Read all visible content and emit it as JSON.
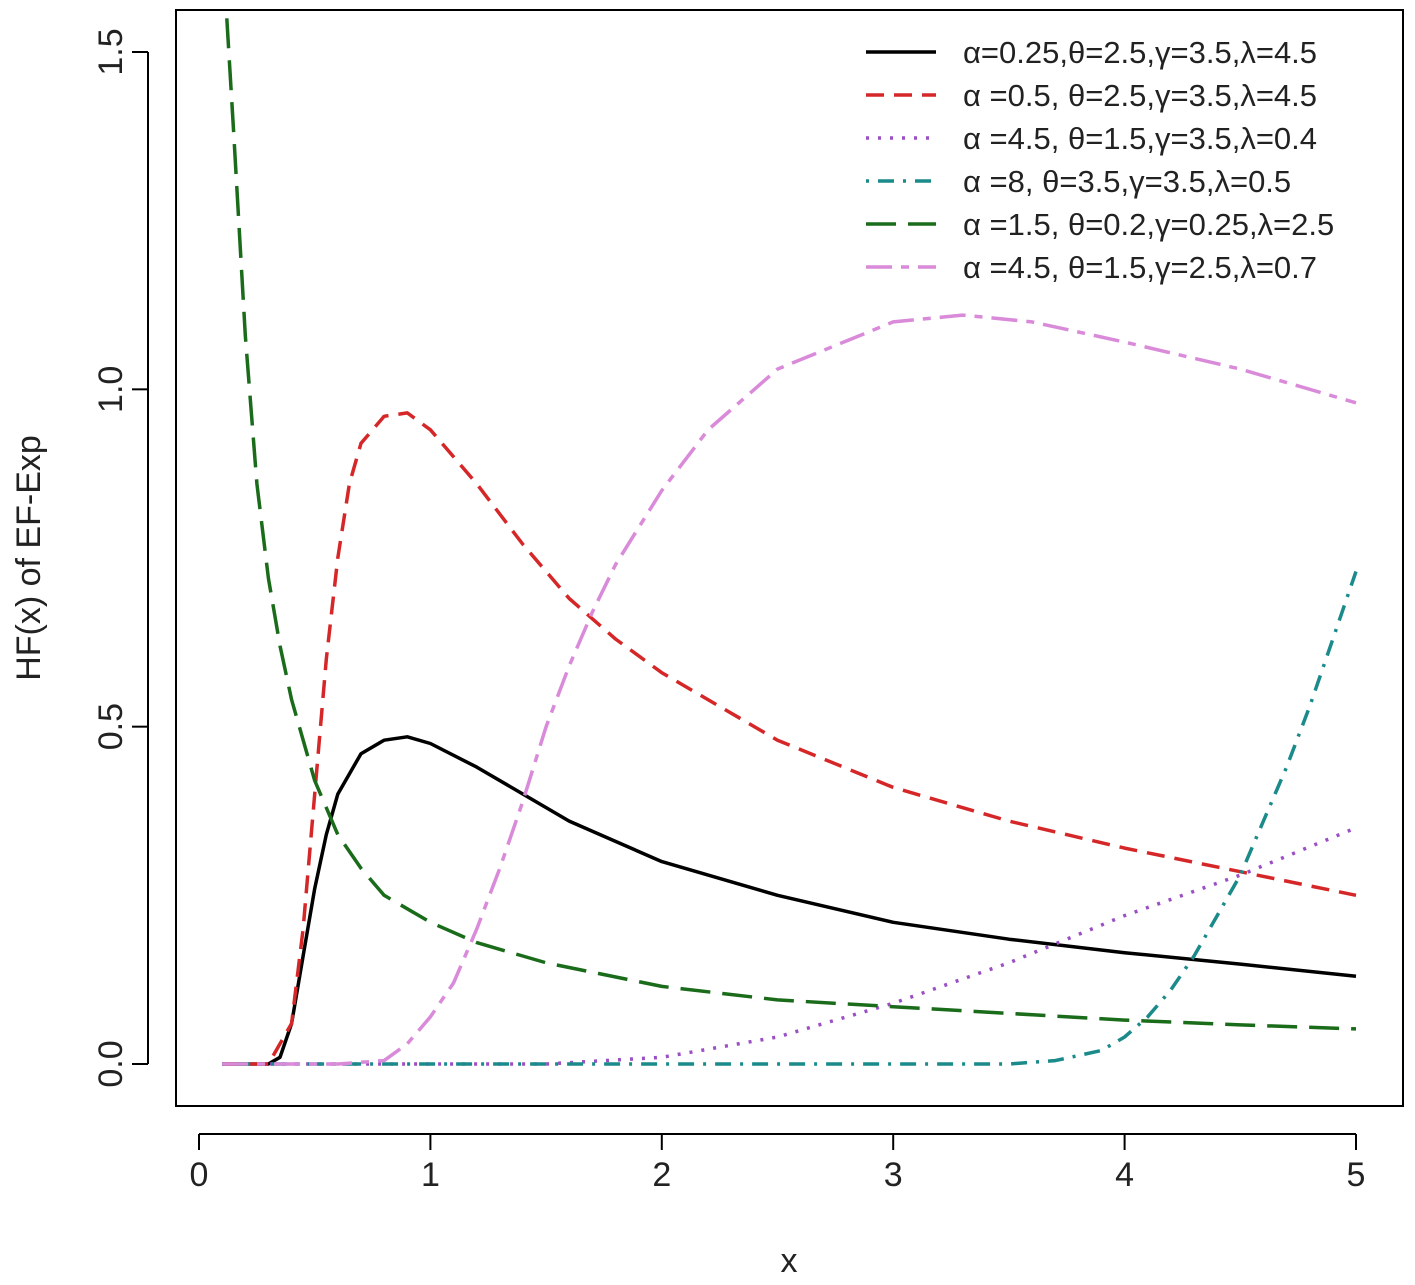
{
  "chart_data": {
    "type": "line",
    "title": "",
    "xlabel": "x",
    "ylabel": "HF(x) of EF-Exp",
    "xlim": [
      0,
      5
    ],
    "ylim": [
      0,
      1.5
    ],
    "x_ticks": [
      "0",
      "1",
      "2",
      "3",
      "4",
      "5"
    ],
    "y_ticks": [
      "0.0",
      "0.5",
      "1.0",
      "1.5"
    ],
    "grid": false,
    "legend_position": "top-right",
    "series": [
      {
        "name": "α=0.25,θ=2.5,γ=3.5,λ=4.5",
        "color": "#000000",
        "dash": "solid",
        "x": [
          0.1,
          0.2,
          0.3,
          0.35,
          0.4,
          0.45,
          0.5,
          0.55,
          0.6,
          0.7,
          0.8,
          0.9,
          1.0,
          1.2,
          1.4,
          1.6,
          1.8,
          2.0,
          2.5,
          3.0,
          3.5,
          4.0,
          4.5,
          5.0
        ],
        "y": [
          0,
          0,
          0,
          0.01,
          0.06,
          0.16,
          0.26,
          0.34,
          0.4,
          0.46,
          0.48,
          0.485,
          0.475,
          0.44,
          0.4,
          0.36,
          0.33,
          0.3,
          0.25,
          0.21,
          0.185,
          0.165,
          0.148,
          0.13
        ]
      },
      {
        "name": "α =0.5, θ=2.5,γ=3.5,λ=4.5",
        "color": "#d62728",
        "dash": "dashed",
        "x": [
          0.1,
          0.3,
          0.4,
          0.45,
          0.5,
          0.55,
          0.6,
          0.65,
          0.7,
          0.8,
          0.9,
          1.0,
          1.2,
          1.4,
          1.6,
          1.8,
          2.0,
          2.5,
          3.0,
          3.5,
          4.0,
          4.5,
          5.0
        ],
        "y": [
          0,
          0,
          0.06,
          0.2,
          0.4,
          0.6,
          0.75,
          0.86,
          0.92,
          0.96,
          0.965,
          0.94,
          0.86,
          0.77,
          0.69,
          0.63,
          0.58,
          0.48,
          0.41,
          0.36,
          0.32,
          0.285,
          0.25
        ]
      },
      {
        "name": "α =4.5, θ=1.5,γ=3.5,λ=0.4",
        "color": "#9b4fc4",
        "dash": "dotted",
        "x": [
          0.1,
          1.0,
          1.5,
          2.0,
          2.5,
          3.0,
          3.5,
          4.0,
          4.5,
          5.0
        ],
        "y": [
          0,
          0,
          0,
          0.01,
          0.04,
          0.09,
          0.15,
          0.22,
          0.28,
          0.35
        ]
      },
      {
        "name": "α =8, θ=3.5,γ=3.5,λ=0.5",
        "color": "#1a8a8a",
        "dash": "dashdot",
        "x": [
          0.1,
          1.0,
          2.0,
          3.0,
          3.5,
          3.7,
          3.9,
          4.0,
          4.1,
          4.2,
          4.3,
          4.4,
          4.5,
          4.6,
          4.7,
          4.8,
          4.9,
          5.0
        ],
        "y": [
          0,
          0,
          0,
          0,
          0,
          0.005,
          0.02,
          0.04,
          0.07,
          0.11,
          0.16,
          0.22,
          0.28,
          0.36,
          0.44,
          0.53,
          0.63,
          0.73
        ]
      },
      {
        "name": "α =1.5, θ=0.2,γ=0.25,λ=2.5",
        "color": "#1a6b1a",
        "dash": "longdash",
        "x": [
          0.12,
          0.15,
          0.2,
          0.25,
          0.3,
          0.35,
          0.4,
          0.5,
          0.6,
          0.7,
          0.8,
          1.0,
          1.2,
          1.5,
          2.0,
          2.5,
          3.0,
          3.5,
          4.0,
          4.5,
          5.0
        ],
        "y": [
          1.55,
          1.38,
          1.08,
          0.86,
          0.72,
          0.62,
          0.54,
          0.42,
          0.34,
          0.29,
          0.25,
          0.21,
          0.18,
          0.15,
          0.115,
          0.095,
          0.085,
          0.075,
          0.065,
          0.058,
          0.052
        ]
      },
      {
        "name": "α =4.5, θ=1.5,γ=2.5,λ=0.7",
        "color": "#d98ad9",
        "dash": "twodash",
        "x": [
          0.1,
          0.6,
          0.8,
          0.9,
          1.0,
          1.1,
          1.2,
          1.3,
          1.4,
          1.5,
          1.6,
          1.7,
          1.8,
          2.0,
          2.2,
          2.5,
          3.0,
          3.3,
          3.6,
          4.0,
          4.5,
          5.0
        ],
        "y": [
          0,
          0,
          0.005,
          0.03,
          0.07,
          0.12,
          0.2,
          0.29,
          0.39,
          0.5,
          0.59,
          0.67,
          0.74,
          0.85,
          0.94,
          1.03,
          1.1,
          1.11,
          1.1,
          1.07,
          1.03,
          0.98
        ]
      }
    ]
  }
}
